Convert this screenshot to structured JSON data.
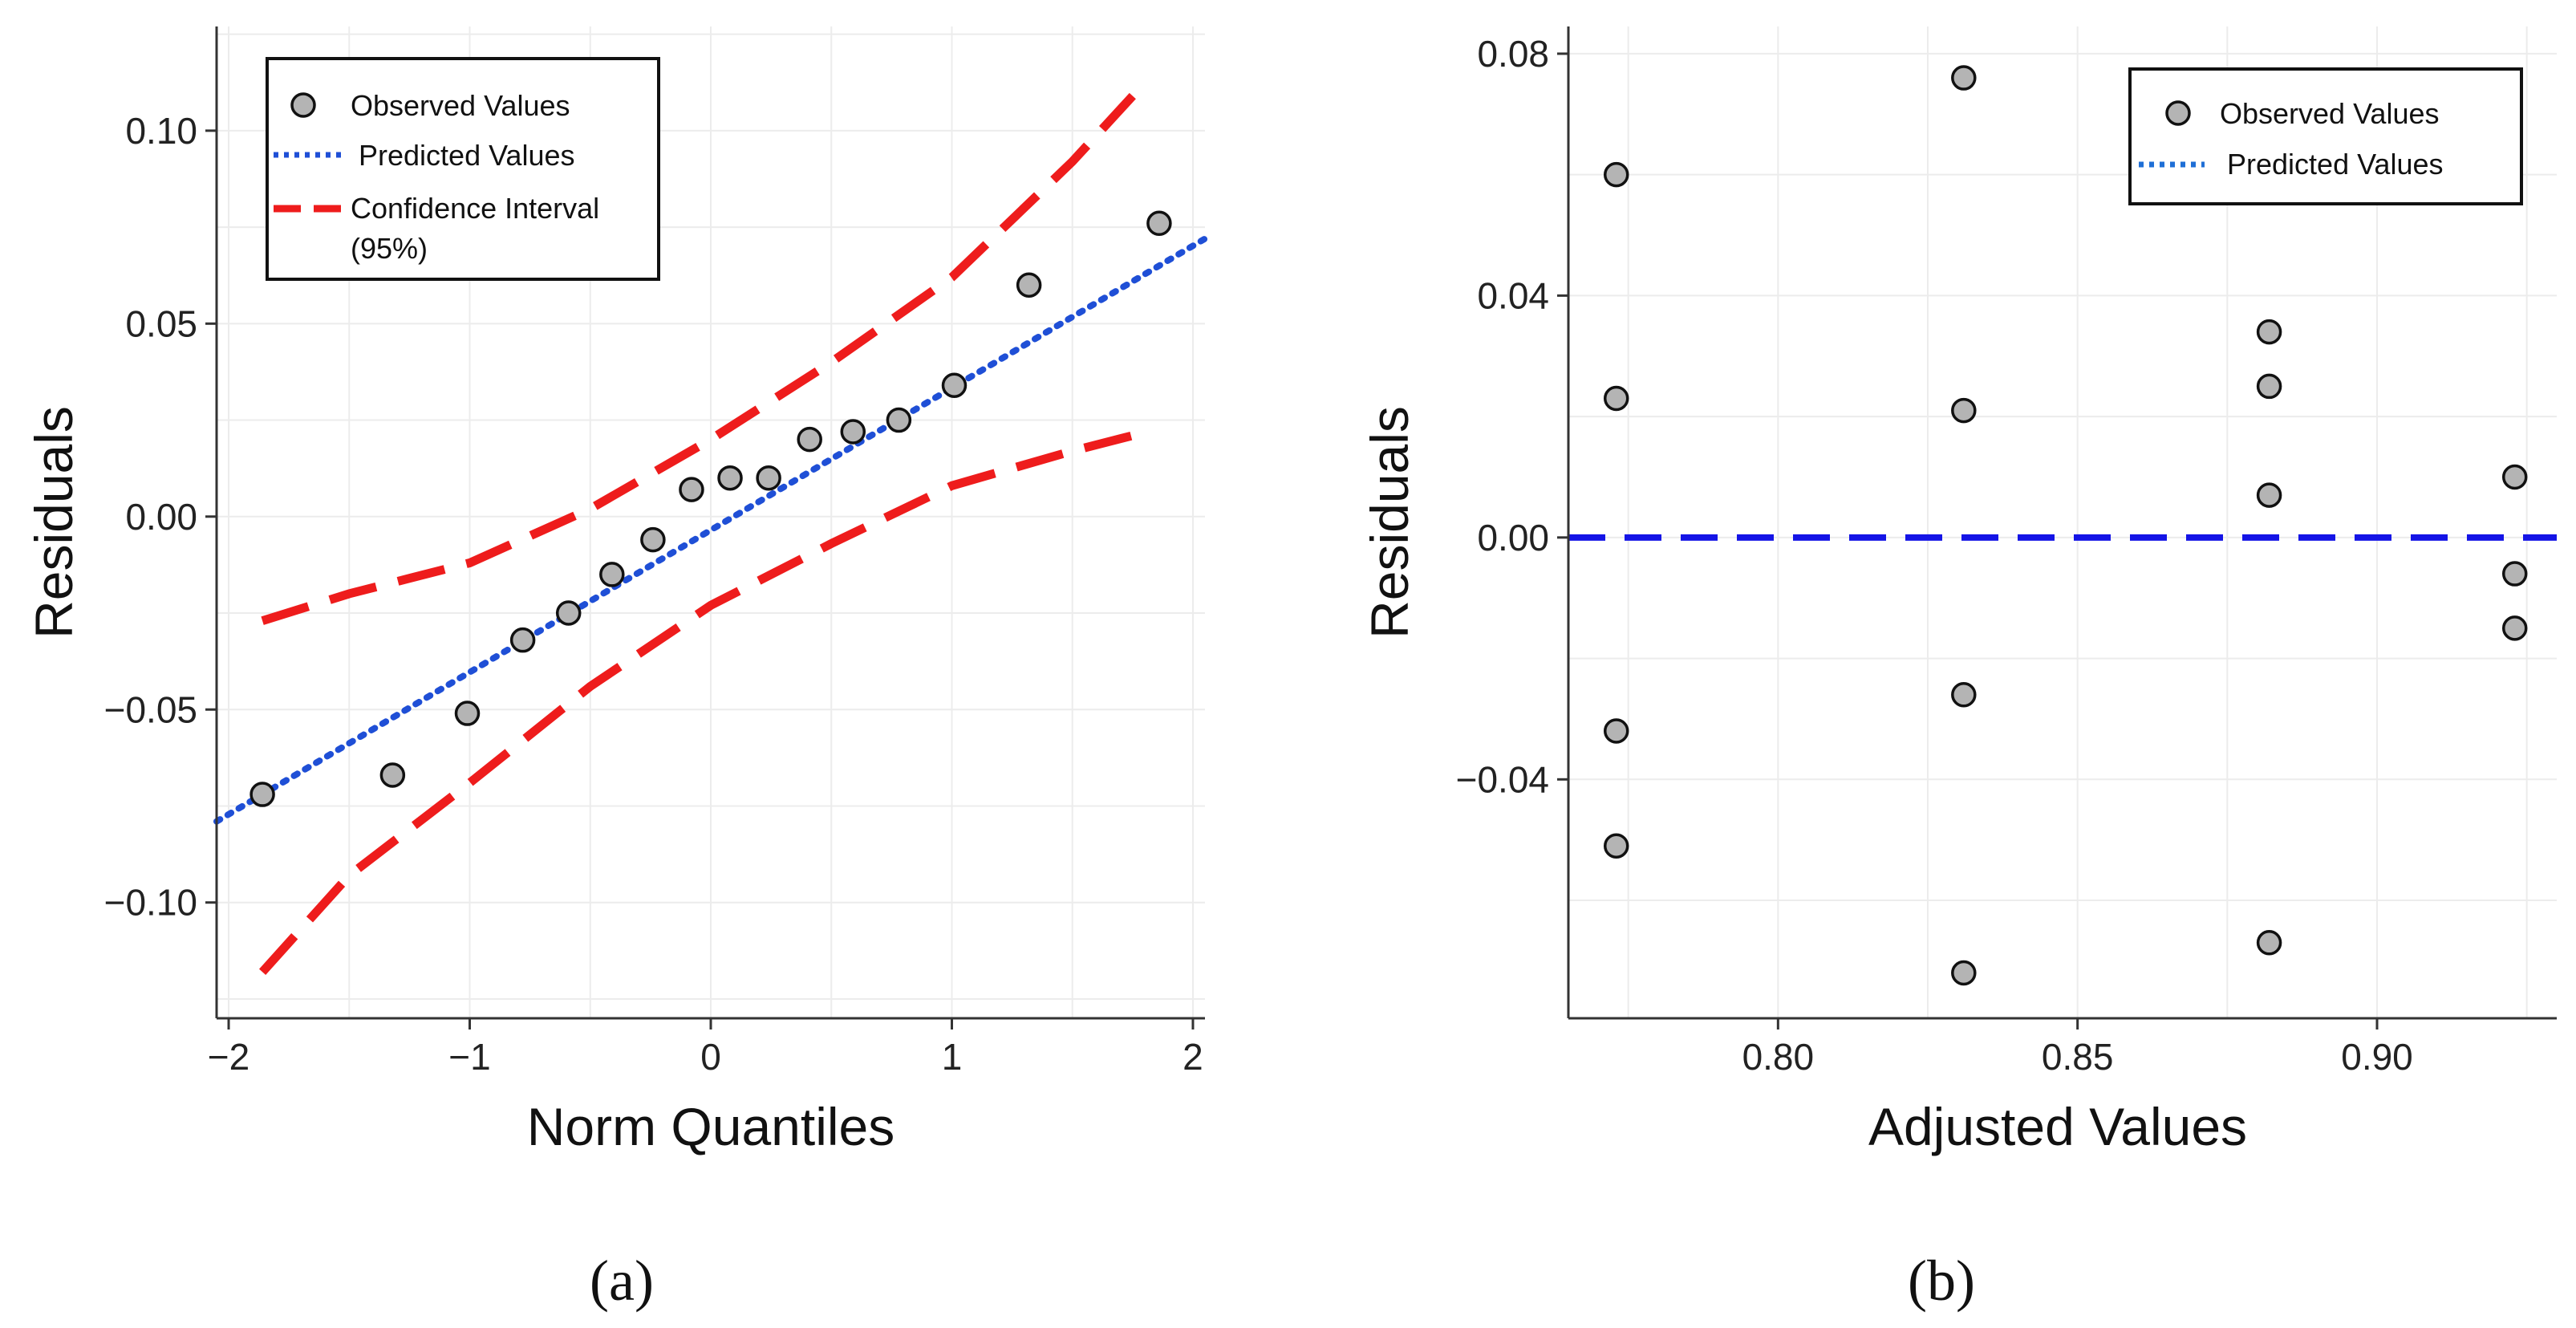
{
  "chart_data": [
    {
      "type": "scatter",
      "panel_label": "(a)",
      "xlabel": "Norm Quantiles",
      "ylabel": "Residuals",
      "xlim": [
        -2.05,
        2.05
      ],
      "ylim": [
        -0.13,
        0.127
      ],
      "xticks": [
        -2,
        -1,
        0,
        1,
        2
      ],
      "xtick_labels": [
        "−2",
        "−1",
        "0",
        "1",
        "2"
      ],
      "yticks": [
        -0.1,
        -0.05,
        0.0,
        0.05,
        0.1
      ],
      "ytick_labels": [
        "−0.10",
        "−0.05",
        "0.00",
        "0.05",
        "0.10"
      ],
      "grid": true,
      "legend": {
        "placement": "top-left",
        "entries": [
          {
            "label": "Observed Values",
            "style": "marker"
          },
          {
            "label": "Predicted Values",
            "style": "dotted",
            "color": "#1f4fd6"
          },
          {
            "label": "Confidence Interval",
            "label2": "(95%)",
            "style": "dashed",
            "color": "#ee1c1c"
          }
        ]
      },
      "series": [
        {
          "name": "Observed Values",
          "kind": "points",
          "x": [
            -1.86,
            -1.32,
            -1.01,
            -0.78,
            -0.59,
            -0.41,
            -0.24,
            -0.08,
            0.08,
            0.24,
            0.41,
            0.59,
            0.78,
            1.01,
            1.32,
            1.86
          ],
          "y": [
            -0.072,
            -0.067,
            -0.051,
            -0.032,
            -0.025,
            -0.015,
            -0.006,
            0.007,
            0.01,
            0.01,
            0.02,
            0.022,
            0.025,
            0.034,
            0.06,
            0.076
          ],
          "color": "#b4b4b4"
        },
        {
          "name": "Predicted Values",
          "kind": "line",
          "x": [
            -2.05,
            2.05
          ],
          "y": [
            -0.079,
            0.072
          ],
          "color": "#1f4fd6"
        },
        {
          "name": "Confidence Interval (upper)",
          "kind": "line",
          "x": [
            -1.86,
            -1.5,
            -1.0,
            -0.5,
            0.0,
            0.5,
            1.0,
            1.5,
            1.75
          ],
          "y": [
            -0.027,
            -0.02,
            -0.012,
            0.002,
            0.02,
            0.04,
            0.062,
            0.092,
            0.109
          ],
          "color": "#ee1c1c"
        },
        {
          "name": "Confidence Interval (lower)",
          "kind": "line",
          "x": [
            -1.86,
            -1.5,
            -1.0,
            -0.5,
            0.0,
            0.5,
            1.0,
            1.5,
            1.75
          ],
          "y": [
            -0.118,
            -0.093,
            -0.069,
            -0.044,
            -0.023,
            -0.007,
            0.008,
            0.017,
            0.021
          ],
          "color": "#ee1c1c"
        }
      ]
    },
    {
      "type": "scatter",
      "panel_label": "(b)",
      "xlabel": "Adjusted Values",
      "ylabel": "Residuals",
      "xlim": [
        0.765,
        0.93
      ],
      "ylim": [
        -0.0795,
        0.0845
      ],
      "xticks": [
        0.8,
        0.85,
        0.9
      ],
      "xtick_labels": [
        "0.80",
        "0.85",
        "0.90"
      ],
      "yticks": [
        -0.04,
        0.0,
        0.04,
        0.08
      ],
      "ytick_labels": [
        "−0.04",
        "0.00",
        "0.04",
        "0.08"
      ],
      "grid": true,
      "legend": {
        "placement": "top-right",
        "entries": [
          {
            "label": "Observed Values",
            "style": "marker"
          },
          {
            "label": "Predicted Values",
            "style": "dotted",
            "color": "#1f6fd6"
          }
        ]
      },
      "series": [
        {
          "name": "Observed Values",
          "kind": "points",
          "x": [
            0.773,
            0.773,
            0.773,
            0.773,
            0.831,
            0.831,
            0.831,
            0.831,
            0.882,
            0.882,
            0.882,
            0.882,
            0.923,
            0.923,
            0.923
          ],
          "y": [
            0.06,
            0.023,
            -0.032,
            -0.051,
            0.076,
            0.021,
            -0.026,
            -0.072,
            0.034,
            0.025,
            0.007,
            -0.067,
            0.01,
            -0.006,
            -0.015
          ],
          "color": "#b4b4b4"
        },
        {
          "name": "Predicted Values",
          "kind": "hline",
          "y": 0.0,
          "color": "#1414e6"
        }
      ]
    }
  ]
}
